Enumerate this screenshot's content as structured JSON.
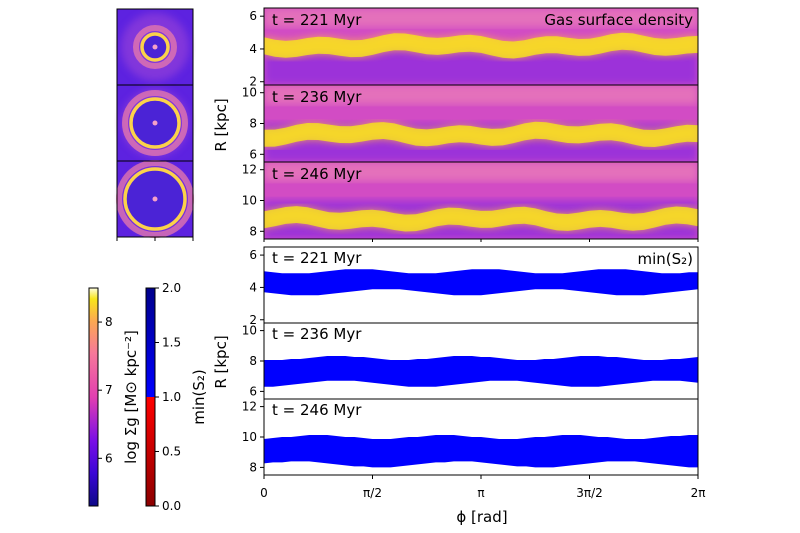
{
  "figure": {
    "top_title": "Gas surface density",
    "bottom_title": "min(S₂)"
  },
  "chart_data": [
    {
      "type": "heatmap",
      "title": "Gas surface density",
      "xlabel": "ϕ [rad]",
      "ylabel": "R [kpc]",
      "xlim": [
        0,
        6.283
      ],
      "x_ticks": [
        "0",
        "π/2",
        "π",
        "3π/2",
        "2π"
      ],
      "colormap": "plasma",
      "panels": [
        {
          "label": "t = 221 Myr",
          "ylim": [
            1.8,
            6.5
          ],
          "y_ticks": [
            2,
            4,
            6
          ],
          "ring_R": 4.2
        },
        {
          "label": "t = 236 Myr",
          "ylim": [
            5.5,
            10.5
          ],
          "y_ticks": [
            6,
            8,
            10
          ],
          "ring_R": 7.3
        },
        {
          "label": "t = 246 Myr",
          "ylim": [
            7.5,
            12.5
          ],
          "y_ticks": [
            8,
            10,
            12
          ],
          "ring_R": 8.8
        }
      ]
    },
    {
      "type": "area",
      "title": "min(S₂)",
      "xlabel": "ϕ [rad]",
      "ylabel": "R [kpc]",
      "xlim": [
        0,
        6.283
      ],
      "x_ticks": [
        "0",
        "π/2",
        "π",
        "3π/2",
        "2π"
      ],
      "fill_color": "#0000ff",
      "panels": [
        {
          "label": "t = 221 Myr",
          "ylim": [
            1.8,
            6.5
          ],
          "y_ticks": [
            2,
            4,
            6
          ],
          "band_low": 3.7,
          "band_high": 5.0
        },
        {
          "label": "t = 236 Myr",
          "ylim": [
            5.5,
            10.5
          ],
          "y_ticks": [
            6,
            8,
            10
          ],
          "band_low": 6.5,
          "band_high": 8.2
        },
        {
          "label": "t = 246 Myr",
          "ylim": [
            7.5,
            12.5
          ],
          "y_ticks": [
            8,
            10,
            12
          ],
          "band_low": 8.2,
          "band_high": 10.0
        }
      ]
    }
  ],
  "colorbars": {
    "density": {
      "label": "log Σg [M⊙ kpc⁻²]",
      "range": [
        5.3,
        8.5
      ],
      "ticks": [
        "6",
        "7",
        "8"
      ],
      "tick_values": [
        6,
        7,
        8
      ]
    },
    "stability": {
      "label": "min(S₂)",
      "range": [
        0.0,
        2.0
      ],
      "ticks": [
        "0.0",
        "0.5",
        "1.0",
        "1.5",
        "2.0"
      ],
      "tick_values": [
        0.0,
        0.5,
        1.0,
        1.5,
        2.0
      ],
      "low_color": "#8b0000",
      "high_color": "#00008b",
      "threshold": 1.0
    }
  },
  "thumbnails": [
    {
      "time": "221 Myr"
    },
    {
      "time": "236 Myr"
    },
    {
      "time": "246 Myr"
    }
  ]
}
